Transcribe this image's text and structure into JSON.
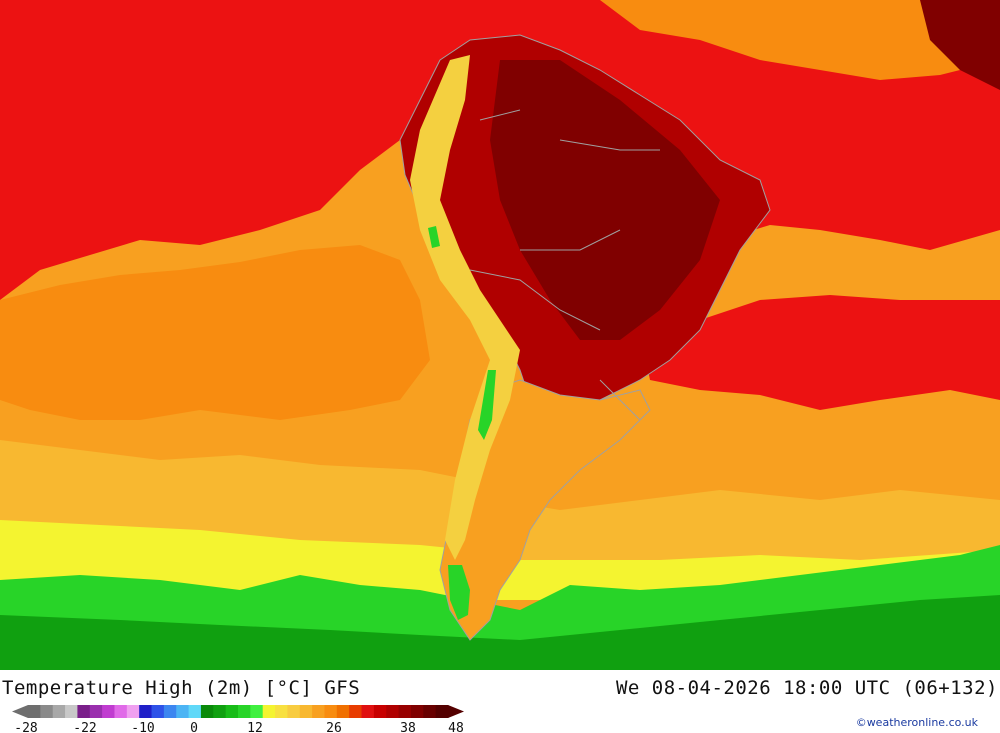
{
  "map": {
    "title": "Temperature High (2m) [°C] GFS",
    "datetime": "We 08-04-2026 18:00 UTC (06+132)",
    "credit": "©weatheronline.co.uk"
  },
  "legend": {
    "tick_labels": [
      "-28",
      "-22",
      "-10",
      "0",
      "12",
      "26",
      "38",
      "48"
    ],
    "colors": [
      "#6e6e6e",
      "#8a8a8a",
      "#a8a8a8",
      "#c8c8c8",
      "#7a1f8a",
      "#9a2fae",
      "#c03cd0",
      "#e06ae8",
      "#f0a0f0",
      "#2020c8",
      "#2e52e8",
      "#3c86f0",
      "#4cb4f4",
      "#60d8f8",
      "#0a8a0a",
      "#10a010",
      "#18bc18",
      "#28d428",
      "#40f040",
      "#f4f430",
      "#f8e040",
      "#f8cc40",
      "#f8b830",
      "#f8a020",
      "#f88c10",
      "#f07000",
      "#e83c00",
      "#e01010",
      "#c80000",
      "#b00000",
      "#980000",
      "#800000",
      "#680000",
      "#540000"
    ]
  },
  "colors": {
    "scale_green": "#18bc18",
    "scale_yellow": "#f8e040",
    "scale_orange": "#f88c10",
    "scale_red": "#e01010",
    "scale_darkred": "#800000",
    "borders": "#a0a0a0"
  }
}
